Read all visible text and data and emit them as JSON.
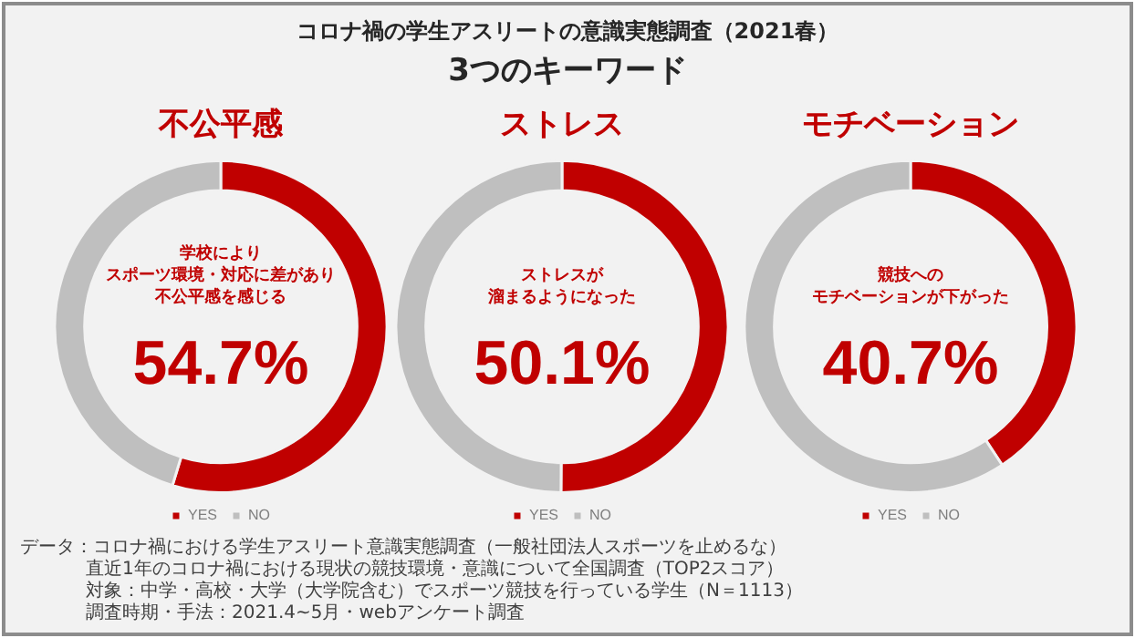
{
  "chart_data": [
    {
      "type": "other",
      "title": "コロナ禍の学生アスリートの意識実態調査（2021春）",
      "subtitle": "3つのキーワード"
    },
    {
      "type": "donut",
      "title": "不公平感",
      "categories": [
        "YES",
        "NO"
      ],
      "values": [
        54.7,
        45.3
      ],
      "colors": [
        "#c00000",
        "#bfbfbf"
      ],
      "annotations": [
        "学校により",
        "スポーツ環境・対応に差があり",
        "不公平感を感じる",
        "54.7%"
      ],
      "legend": "bottom"
    },
    {
      "type": "donut",
      "title": "ストレス",
      "categories": [
        "YES",
        "NO"
      ],
      "values": [
        50.1,
        49.9
      ],
      "colors": [
        "#c00000",
        "#bfbfbf"
      ],
      "annotations": [
        "ストレスが",
        "溜まるようになった",
        "50.1%"
      ],
      "legend": "bottom"
    },
    {
      "type": "donut",
      "title": "モチベーション",
      "categories": [
        "YES",
        "NO"
      ],
      "values": [
        40.7,
        59.3
      ],
      "colors": [
        "#c00000",
        "#bfbfbf"
      ],
      "annotations": [
        "競技への",
        "モチベーションが下がった",
        "40.7%"
      ],
      "legend": "bottom"
    },
    {
      "type": "other",
      "annotations": [
        "データ：コロナ禍における学生アスリート意識実態調査（一般社団法人スポーツを止めるな）",
        "直近1年のコロナ禍における現状の競技環境・意識について全国調査（TOP2スコア）",
        "対象：中学・高校・大学（大学院含む）でスポーツ競技を行っている学生（N＝1113）",
        "調査時期・手法：2021.4~5月・webアンケート調査"
      ]
    }
  ]
}
